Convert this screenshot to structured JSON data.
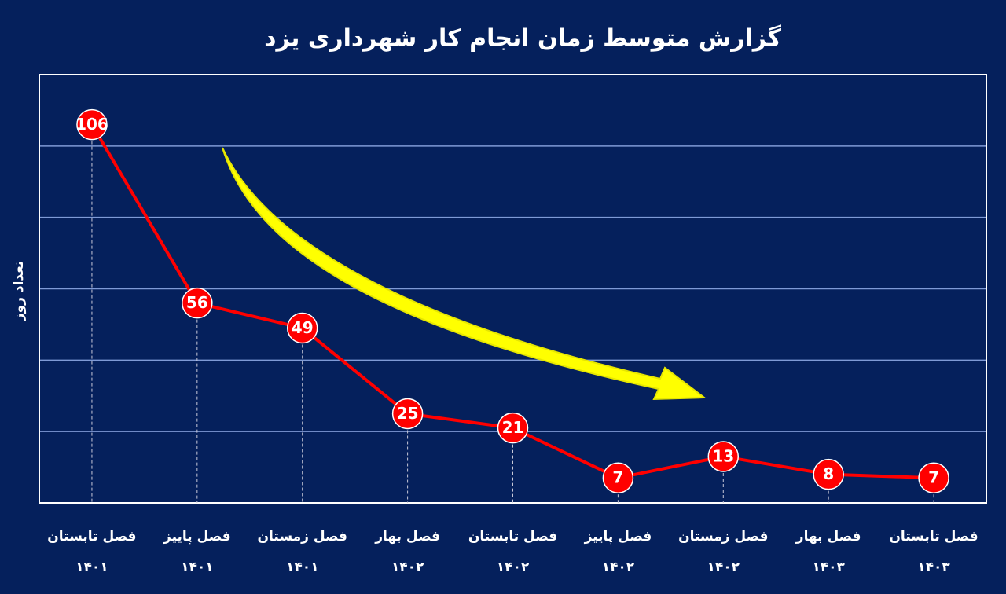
{
  "chart_data": {
    "type": "line",
    "title": "گزارش متوسط زمان انجام کار شهرداری یزد",
    "y_label": "تعداد روز",
    "categories": [
      [
        "فصل تابستان",
        "۱۴۰۱"
      ],
      [
        "فصل پاییز",
        "۱۴۰۱"
      ],
      [
        "فصل زمستان",
        "۱۴۰۱"
      ],
      [
        "فصل بهار",
        "۱۴۰۲"
      ],
      [
        "فصل تابستان",
        "۱۴۰۲"
      ],
      [
        "فصل پاییز",
        "۱۴۰۲"
      ],
      [
        "فصل زمستان",
        "۱۴۰۲"
      ],
      [
        "فصل بهار",
        "۱۴۰۳"
      ],
      [
        "فصل تابستان",
        "۱۴۰۳"
      ]
    ],
    "values": [
      106,
      56,
      49,
      25,
      21,
      7,
      13,
      8,
      7
    ],
    "color": "#ff0000",
    "ylim": [
      0,
      120
    ],
    "yticks": [
      20,
      40,
      60,
      80,
      100
    ],
    "grid": true
  }
}
